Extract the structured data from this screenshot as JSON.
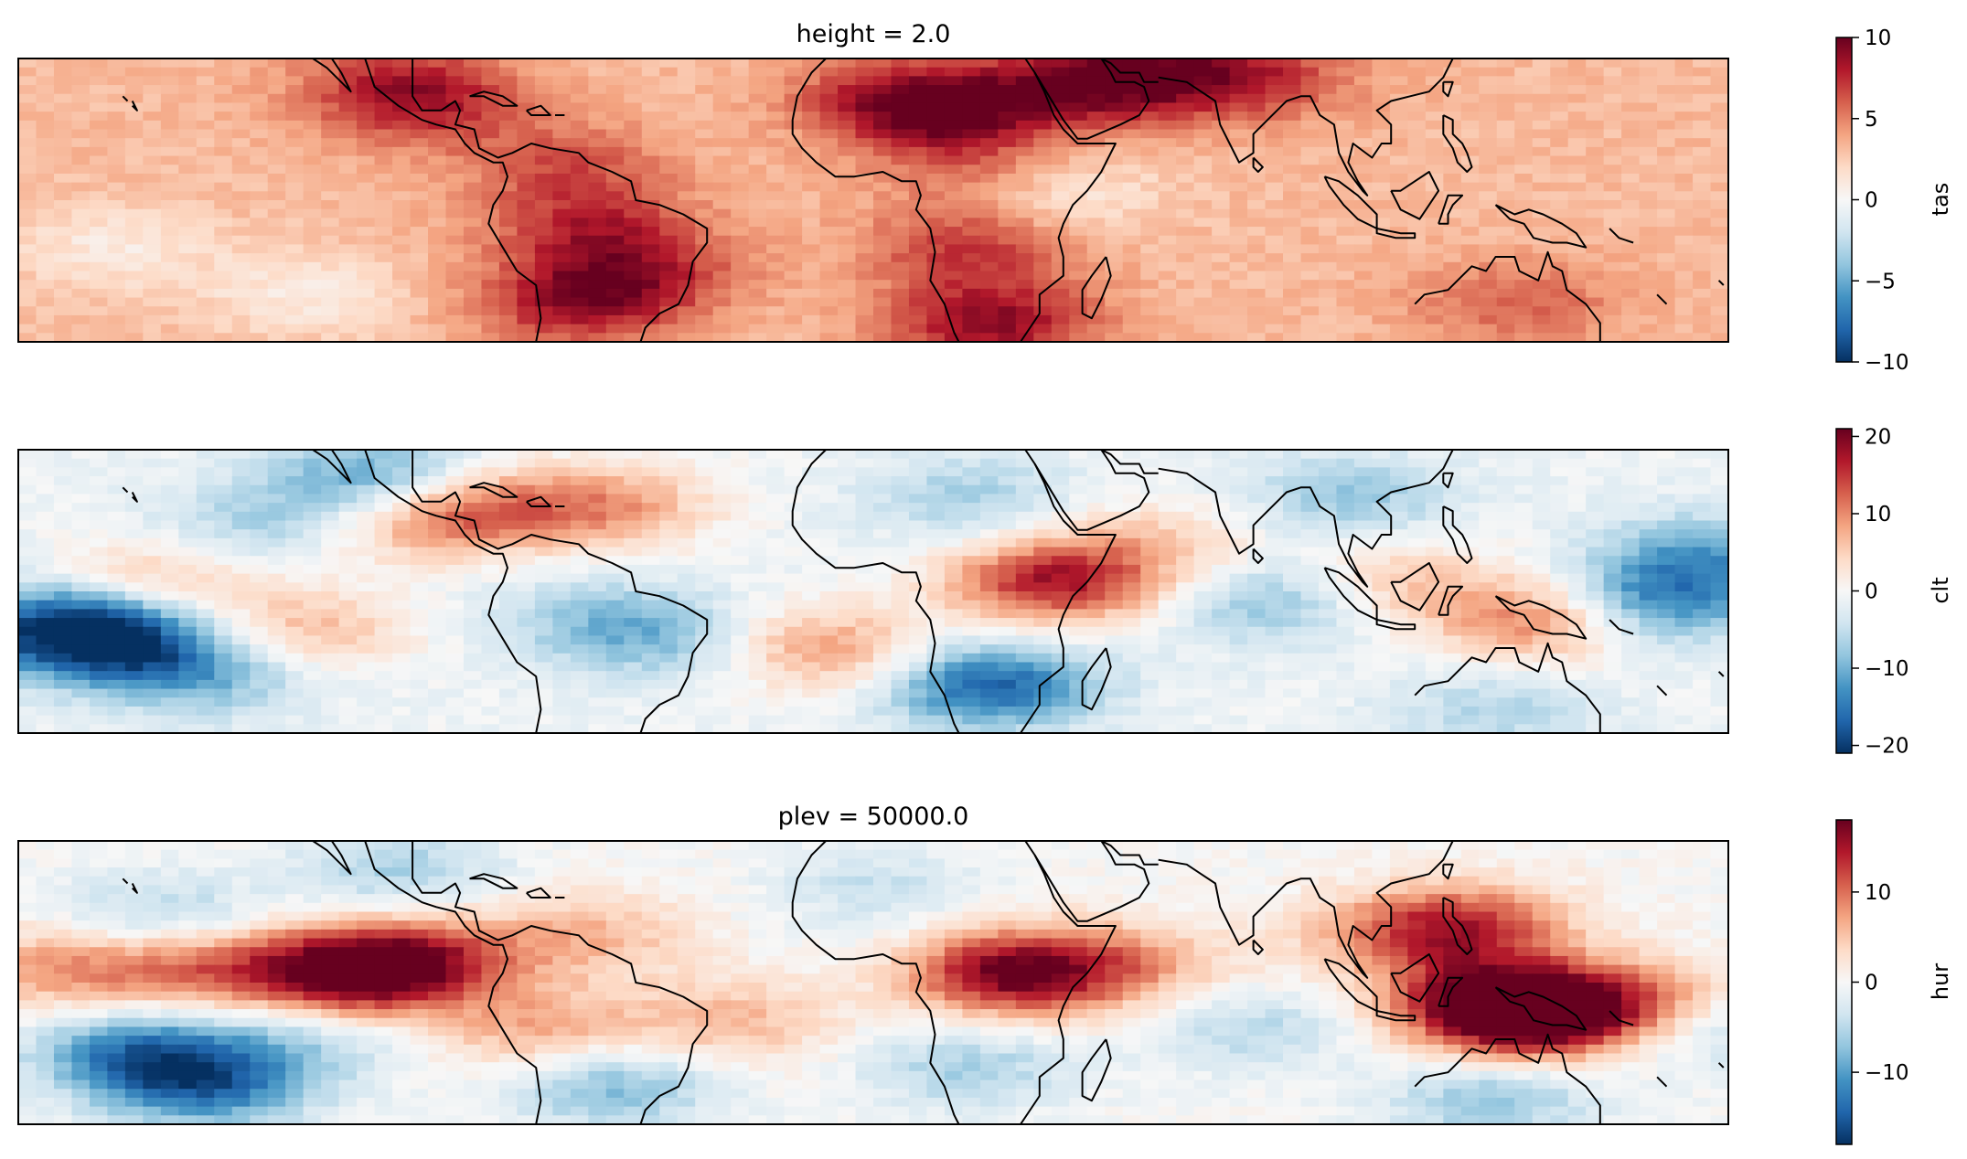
{
  "chart_data": [
    {
      "type": "heatmap",
      "title": "height = 2.0",
      "colorbar": {
        "label": "tas",
        "vmin": -10,
        "vmax": 10,
        "ticks": [
          10,
          5,
          0,
          -5,
          -10
        ],
        "colormap": "RdBu_r"
      },
      "features": [
        {
          "lon": -100,
          "lat": 26,
          "value": 6
        },
        {
          "lon": -95,
          "lat": 20,
          "value": 7
        },
        {
          "lon": -65,
          "lat": 8,
          "value": 6
        },
        {
          "lon": -60,
          "lat": -5,
          "value": 7
        },
        {
          "lon": -50,
          "lat": -15,
          "value": 7
        },
        {
          "lon": -62,
          "lat": -22,
          "value": 8
        },
        {
          "lon": 5,
          "lat": 22,
          "value": 7
        },
        {
          "lon": 15,
          "lat": 18,
          "value": 8
        },
        {
          "lon": 25,
          "lat": 5,
          "value": 6
        },
        {
          "lon": 20,
          "lat": -10,
          "value": 7
        },
        {
          "lon": 25,
          "lat": -26,
          "value": 9
        },
        {
          "lon": 37,
          "lat": 2,
          "value": 0
        },
        {
          "lon": 42,
          "lat": 24,
          "value": 8
        },
        {
          "lon": 60,
          "lat": 27,
          "value": 7
        },
        {
          "lon": 80,
          "lat": 26,
          "value": 7
        },
        {
          "lon": 135,
          "lat": -22,
          "value": 6
        },
        {
          "lon": -120,
          "lat": -20,
          "value": 1
        },
        {
          "lon": -160,
          "lat": -10,
          "value": 1
        }
      ],
      "background": 3.2
    },
    {
      "type": "heatmap",
      "title": "",
      "colorbar": {
        "label": "clt",
        "vmin": -21,
        "vmax": 21,
        "ticks": [
          20,
          10,
          0,
          -10,
          -20
        ],
        "colormap": "RdBu_r"
      },
      "features": [
        {
          "lon": -170,
          "lat": -8,
          "value": -20
        },
        {
          "lon": -155,
          "lat": -12,
          "value": -12
        },
        {
          "lon": -140,
          "lat": -18,
          "value": -8
        },
        {
          "lon": -105,
          "lat": 24,
          "value": -12
        },
        {
          "lon": -130,
          "lat": 14,
          "value": -7
        },
        {
          "lon": -150,
          "lat": 3,
          "value": 6
        },
        {
          "lon": -120,
          "lat": -8,
          "value": 7
        },
        {
          "lon": -95,
          "lat": 15,
          "value": 8
        },
        {
          "lon": -80,
          "lat": 18,
          "value": 7
        },
        {
          "lon": -55,
          "lat": 18,
          "value": 8
        },
        {
          "lon": -45,
          "lat": -10,
          "value": -8
        },
        {
          "lon": -60,
          "lat": -5,
          "value": -6
        },
        {
          "lon": -10,
          "lat": -12,
          "value": 9
        },
        {
          "lon": 20,
          "lat": 20,
          "value": -7
        },
        {
          "lon": 38,
          "lat": 2,
          "value": 17
        },
        {
          "lon": 25,
          "lat": -20,
          "value": -17
        },
        {
          "lon": 60,
          "lat": 10,
          "value": 5
        },
        {
          "lon": 85,
          "lat": -2,
          "value": -9
        },
        {
          "lon": 110,
          "lat": 2,
          "value": 6
        },
        {
          "lon": 140,
          "lat": -6,
          "value": 11
        },
        {
          "lon": 165,
          "lat": -2,
          "value": -14
        },
        {
          "lon": 175,
          "lat": 8,
          "value": -10
        },
        {
          "lon": 100,
          "lat": 20,
          "value": -8
        },
        {
          "lon": 130,
          "lat": -25,
          "value": -6
        }
      ],
      "background": -1
    },
    {
      "type": "heatmap",
      "title": "plev = 50000.0",
      "colorbar": {
        "label": "hur",
        "vmin": -18,
        "vmax": 18,
        "ticks": [
          10,
          0,
          -10
        ],
        "colormap": "RdBu_r"
      },
      "features": [
        {
          "lon": -170,
          "lat": 3,
          "value": 8
        },
        {
          "lon": -140,
          "lat": 3,
          "value": 9
        },
        {
          "lon": -110,
          "lat": 2,
          "value": 18
        },
        {
          "lon": -95,
          "lat": 5,
          "value": 10
        },
        {
          "lon": -60,
          "lat": 10,
          "value": 6
        },
        {
          "lon": -155,
          "lat": -15,
          "value": -12
        },
        {
          "lon": -140,
          "lat": -22,
          "value": -12
        },
        {
          "lon": -120,
          "lat": -12,
          "value": -5
        },
        {
          "lon": -150,
          "lat": 14,
          "value": -6
        },
        {
          "lon": -100,
          "lat": 24,
          "value": -6
        },
        {
          "lon": -70,
          "lat": -10,
          "value": 7
        },
        {
          "lon": -30,
          "lat": -8,
          "value": 6
        },
        {
          "lon": -55,
          "lat": -22,
          "value": -8
        },
        {
          "lon": 0,
          "lat": 20,
          "value": -4
        },
        {
          "lon": 30,
          "lat": 2,
          "value": 18
        },
        {
          "lon": 55,
          "lat": 4,
          "value": 6
        },
        {
          "lon": 20,
          "lat": -18,
          "value": -6
        },
        {
          "lon": 80,
          "lat": -10,
          "value": -5
        },
        {
          "lon": 110,
          "lat": 10,
          "value": 6
        },
        {
          "lon": 125,
          "lat": 12,
          "value": 11
        },
        {
          "lon": 140,
          "lat": -7,
          "value": 17
        },
        {
          "lon": 130,
          "lat": -4,
          "value": 14
        },
        {
          "lon": 160,
          "lat": -4,
          "value": 8
        },
        {
          "lon": 175,
          "lat": -10,
          "value": -5
        },
        {
          "lon": 130,
          "lat": -25,
          "value": -7
        }
      ],
      "background": 0
    }
  ],
  "colors": {
    "frame": "#000000",
    "coastline": "#000000"
  }
}
